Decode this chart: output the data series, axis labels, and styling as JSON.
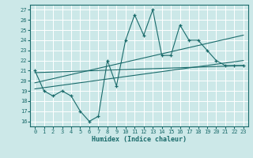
{
  "xlabel": "Humidex (Indice chaleur)",
  "bg_color": "#cce8e8",
  "line_color": "#1a6b6b",
  "xlim": [
    -0.5,
    23.5
  ],
  "ylim": [
    15.5,
    27.5
  ],
  "xticks": [
    0,
    1,
    2,
    3,
    4,
    5,
    6,
    7,
    8,
    9,
    10,
    11,
    12,
    13,
    14,
    15,
    16,
    17,
    18,
    19,
    20,
    21,
    22,
    23
  ],
  "yticks": [
    16,
    17,
    18,
    19,
    20,
    21,
    22,
    23,
    24,
    25,
    26,
    27
  ],
  "grid_color": "#b0d0d0",
  "series1_x": [
    0,
    1,
    2,
    3,
    4,
    5,
    6,
    7,
    8,
    9,
    10,
    11,
    12,
    13,
    14,
    15,
    16,
    17,
    18,
    19,
    20,
    21,
    22,
    23
  ],
  "series1_y": [
    21,
    19,
    18.5,
    19,
    18.5,
    17,
    16,
    16.5,
    22,
    19.5,
    24,
    26.5,
    24.5,
    27,
    22.5,
    22.5,
    25.5,
    24,
    24,
    23,
    22,
    21.5,
    21.5,
    21.5
  ],
  "trend1_x": [
    0,
    23
  ],
  "trend1_y": [
    19.2,
    22.0
  ],
  "trend2_x": [
    0,
    23
  ],
  "trend2_y": [
    19.8,
    24.5
  ],
  "trend3_x": [
    0,
    23
  ],
  "trend3_y": [
    20.8,
    21.5
  ]
}
